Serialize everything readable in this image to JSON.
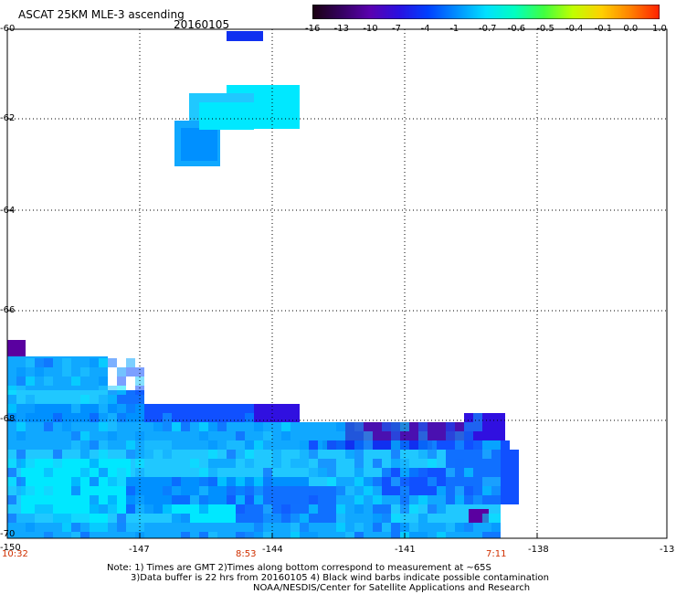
{
  "header": {
    "title": "ASCAT 25KM MLE-3 ascending",
    "date": "20160105"
  },
  "colorbar": {
    "labels": [
      "-16",
      "-13",
      "-10",
      "-7",
      "-4",
      "-1",
      "-0.7",
      "-0.6",
      "-0.5",
      "-0.4",
      "-0.1",
      "0.0",
      "1.0"
    ],
    "colors": [
      "#1a0010",
      "#350060",
      "#5a00b0",
      "#2a10e0",
      "#0040ff",
      "#0090ff",
      "#00e0ff",
      "#00ffc0",
      "#40ff40",
      "#c0ff00",
      "#ffd000",
      "#ff8000",
      "#ff2000"
    ]
  },
  "axes": {
    "y_ticks": [
      "-60",
      "-62",
      "-64",
      "-66",
      "-68",
      "-70"
    ],
    "x_ticks": [
      "-150",
      "-147",
      "-144",
      "-141",
      "-138",
      "-13"
    ],
    "times": [
      "10:32",
      "8:53",
      "7:11"
    ]
  },
  "notes": {
    "line1": "Note: 1) Times are GMT 2)Times along bottom correspond to measurement at ~65S",
    "line2": "3)Data buffer is 22 hrs from 20160105 4) Black wind barbs indicate possible contamination",
    "line3": "NOAA/NESDIS/Center for Satellite Applications and Research"
  }
}
